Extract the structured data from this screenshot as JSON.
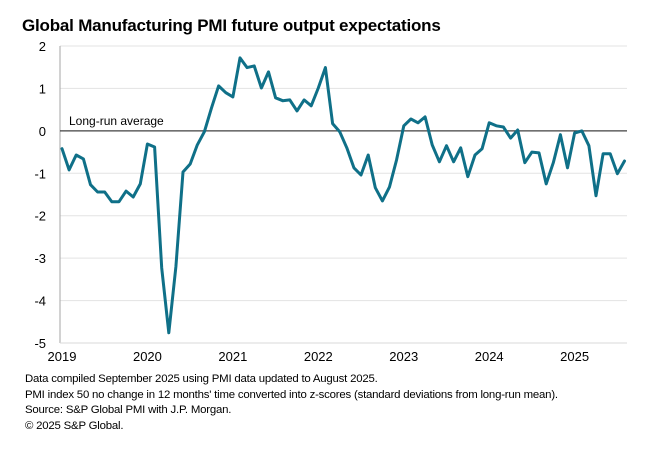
{
  "chart_data": {
    "type": "line",
    "title": "Global Manufacturing PMI future output expectations",
    "xlabel": "",
    "ylabel": "",
    "ylim": [
      -5,
      2
    ],
    "yticks": [
      2,
      1,
      0,
      -1,
      -2,
      -3,
      -4,
      -5
    ],
    "ytick_labels": [
      "2",
      "1",
      "0",
      "-1",
      "-2",
      "-3",
      "-4",
      "-5"
    ],
    "xtick_labels": [
      "2019",
      "2020",
      "2021",
      "2022",
      "2023",
      "2024",
      "2025"
    ],
    "x_start": "2019-01",
    "x_end": "2025-08",
    "frequency": "monthly",
    "grid": true,
    "reference_line": {
      "value": 0,
      "label": "Long-run average"
    },
    "series": [
      {
        "name": "Global Manufacturing PMI future output expectations (z-score)",
        "color": "#0f7088",
        "values": [
          -0.42,
          -0.92,
          -0.57,
          -0.66,
          -1.27,
          -1.44,
          -1.44,
          -1.67,
          -1.67,
          -1.42,
          -1.56,
          -1.25,
          -0.31,
          -0.38,
          -3.23,
          -4.76,
          -3.2,
          -0.97,
          -0.78,
          -0.33,
          -0.02,
          0.54,
          1.06,
          0.9,
          0.8,
          1.72,
          1.49,
          1.53,
          1.01,
          1.39,
          0.78,
          0.71,
          0.73,
          0.47,
          0.73,
          0.59,
          1.01,
          1.49,
          0.17,
          -0.02,
          -0.4,
          -0.87,
          -1.04,
          -0.57,
          -1.34,
          -1.65,
          -1.32,
          -0.68,
          0.12,
          0.28,
          0.19,
          0.33,
          -0.33,
          -0.73,
          -0.35,
          -0.73,
          -0.4,
          -1.08,
          -0.57,
          -0.42,
          0.19,
          0.12,
          0.09,
          -0.17,
          0.02,
          -0.75,
          -0.5,
          -0.52,
          -1.25,
          -0.75,
          -0.09,
          -0.87,
          -0.05,
          0.0,
          -0.35,
          -1.53,
          -0.54,
          -0.54,
          -1.01,
          -0.71
        ]
      }
    ]
  },
  "notes": [
    "Data compiled September 2025 using PMI data updated to August 2025.",
    "PMI index 50 no change in 12 months' time converted into z-scores (standard deviations from long-run mean).",
    "Source: S&P Global PMI with J.P. Morgan.",
    "© 2025 S&P Global."
  ]
}
